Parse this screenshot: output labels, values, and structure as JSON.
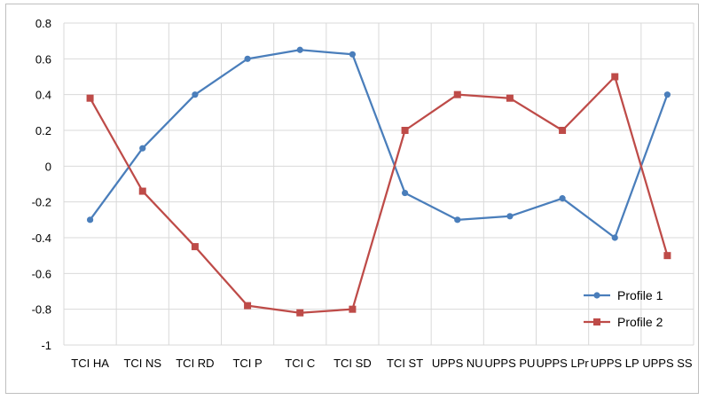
{
  "chart_data": {
    "type": "line",
    "categories": [
      "TCI HA",
      "TCI NS",
      "TCI RD",
      "TCI P",
      "TCI C",
      "TCI SD",
      "TCI ST",
      "UPPS NU",
      "UPPS PU",
      "UPPS LPr",
      "UPPS LP",
      "UPPS SS"
    ],
    "series": [
      {
        "name": "Profile 1",
        "color": "#4a7ebb",
        "marker": "circle",
        "values": [
          -0.3,
          0.1,
          0.4,
          0.6,
          0.65,
          0.625,
          -0.15,
          -0.3,
          -0.28,
          -0.18,
          -0.4,
          0.4
        ]
      },
      {
        "name": "Profile 2",
        "color": "#be4b48",
        "marker": "square",
        "values": [
          0.38,
          -0.14,
          -0.45,
          -0.78,
          -0.82,
          -0.8,
          0.2,
          0.4,
          0.38,
          0.2,
          0.5,
          -0.5
        ]
      }
    ],
    "y_ticks": [
      "0.8",
      "0.6",
      "0.4",
      "0.2",
      "0",
      "-0.2",
      "-0.4",
      "-0.6",
      "-0.8",
      "-1"
    ],
    "ylim": [
      -1,
      0.8
    ],
    "grid": "horizontal-and-vertical",
    "legend_position": "bottom-right",
    "title": "",
    "xlabel": "",
    "ylabel": ""
  }
}
